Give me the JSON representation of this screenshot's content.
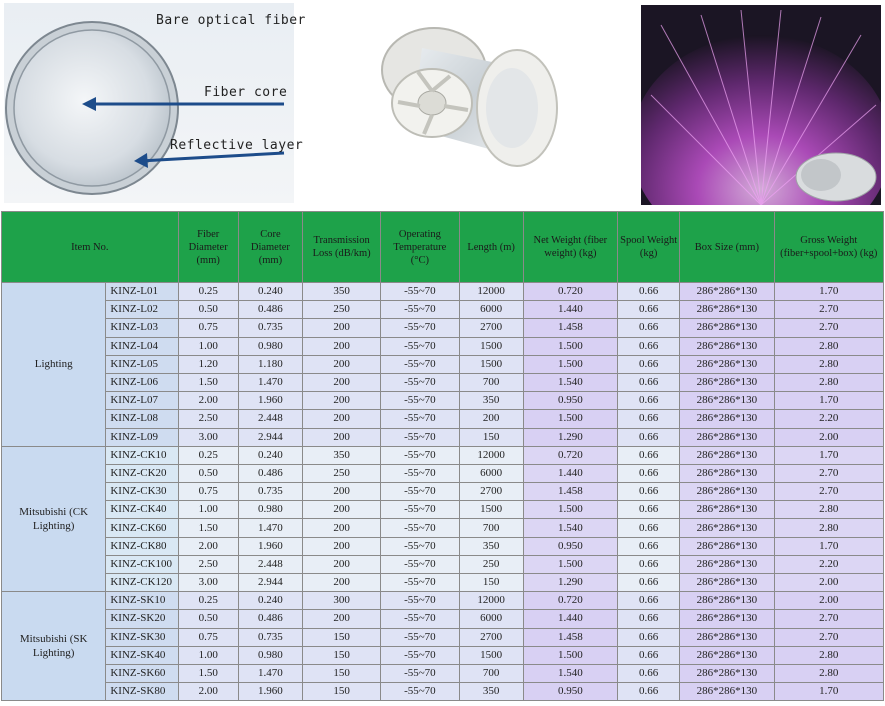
{
  "diagram": {
    "labels": {
      "bare": "Bare optical fiber",
      "core": "Fiber core",
      "reflective": "Reflective layer"
    }
  },
  "table": {
    "headers": [
      "Item No.",
      "Fiber Diameter (mm)",
      "Core Diameter (mm)",
      "Transmission Loss (dB/km)",
      "Operating Temperature (°C)",
      "Length (m)",
      "Net Weight (fiber weight) (kg)",
      "Spool Weight (kg)",
      "Box Size (mm)",
      "Gross Weight (fiber+spool+box) (kg)"
    ],
    "groups": [
      {
        "name": "Lighting",
        "rows": [
          [
            "KINZ-L01",
            "0.25",
            "0.240",
            "350",
            "-55~70",
            "12000",
            "0.720",
            "0.66",
            "286*286*130",
            "1.70"
          ],
          [
            "KINZ-L02",
            "0.50",
            "0.486",
            "250",
            "-55~70",
            "6000",
            "1.440",
            "0.66",
            "286*286*130",
            "2.70"
          ],
          [
            "KINZ-L03",
            "0.75",
            "0.735",
            "200",
            "-55~70",
            "2700",
            "1.458",
            "0.66",
            "286*286*130",
            "2.70"
          ],
          [
            "KINZ-L04",
            "1.00",
            "0.980",
            "200",
            "-55~70",
            "1500",
            "1.500",
            "0.66",
            "286*286*130",
            "2.80"
          ],
          [
            "KINZ-L05",
            "1.20",
            "1.180",
            "200",
            "-55~70",
            "1500",
            "1.500",
            "0.66",
            "286*286*130",
            "2.80"
          ],
          [
            "KINZ-L06",
            "1.50",
            "1.470",
            "200",
            "-55~70",
            "700",
            "1.540",
            "0.66",
            "286*286*130",
            "2.80"
          ],
          [
            "KINZ-L07",
            "2.00",
            "1.960",
            "200",
            "-55~70",
            "350",
            "0.950",
            "0.66",
            "286*286*130",
            "1.70"
          ],
          [
            "KINZ-L08",
            "2.50",
            "2.448",
            "200",
            "-55~70",
            "200",
            "1.500",
            "0.66",
            "286*286*130",
            "2.20"
          ],
          [
            "KINZ-L09",
            "3.00",
            "2.944",
            "200",
            "-55~70",
            "150",
            "1.290",
            "0.66",
            "286*286*130",
            "2.00"
          ]
        ]
      },
      {
        "name": "Mitsubishi (CK Lighting)",
        "rows": [
          [
            "KINZ-CK10",
            "0.25",
            "0.240",
            "350",
            "-55~70",
            "12000",
            "0.720",
            "0.66",
            "286*286*130",
            "1.70"
          ],
          [
            "KINZ-CK20",
            "0.50",
            "0.486",
            "250",
            "-55~70",
            "6000",
            "1.440",
            "0.66",
            "286*286*130",
            "2.70"
          ],
          [
            "KINZ-CK30",
            "0.75",
            "0.735",
            "200",
            "-55~70",
            "2700",
            "1.458",
            "0.66",
            "286*286*130",
            "2.70"
          ],
          [
            "KINZ-CK40",
            "1.00",
            "0.980",
            "200",
            "-55~70",
            "1500",
            "1.500",
            "0.66",
            "286*286*130",
            "2.80"
          ],
          [
            "KINZ-CK60",
            "1.50",
            "1.470",
            "200",
            "-55~70",
            "700",
            "1.540",
            "0.66",
            "286*286*130",
            "2.80"
          ],
          [
            "KINZ-CK80",
            "2.00",
            "1.960",
            "200",
            "-55~70",
            "350",
            "0.950",
            "0.66",
            "286*286*130",
            "1.70"
          ],
          [
            "KINZ-CK100",
            "2.50",
            "2.448",
            "200",
            "-55~70",
            "250",
            "1.500",
            "0.66",
            "286*286*130",
            "2.20"
          ],
          [
            "KINZ-CK120",
            "3.00",
            "2.944",
            "200",
            "-55~70",
            "150",
            "1.290",
            "0.66",
            "286*286*130",
            "2.00"
          ]
        ]
      },
      {
        "name": "Mitsubishi (SK Lighting)",
        "rows": [
          [
            "KINZ-SK10",
            "0.25",
            "0.240",
            "300",
            "-55~70",
            "12000",
            "0.720",
            "0.66",
            "286*286*130",
            "2.00"
          ],
          [
            "KINZ-SK20",
            "0.50",
            "0.486",
            "200",
            "-55~70",
            "6000",
            "1.440",
            "0.66",
            "286*286*130",
            "2.70"
          ],
          [
            "KINZ-SK30",
            "0.75",
            "0.735",
            "150",
            "-55~70",
            "2700",
            "1.458",
            "0.66",
            "286*286*130",
            "2.70"
          ],
          [
            "KINZ-SK40",
            "1.00",
            "0.980",
            "150",
            "-55~70",
            "1500",
            "1.500",
            "0.66",
            "286*286*130",
            "2.80"
          ],
          [
            "KINZ-SK60",
            "1.50",
            "1.470",
            "150",
            "-55~70",
            "700",
            "1.540",
            "0.66",
            "286*286*130",
            "2.80"
          ],
          [
            "KINZ-SK80",
            "2.00",
            "1.960",
            "150",
            "-55~70",
            "350",
            "0.950",
            "0.66",
            "286*286*130",
            "1.70"
          ]
        ]
      }
    ]
  }
}
